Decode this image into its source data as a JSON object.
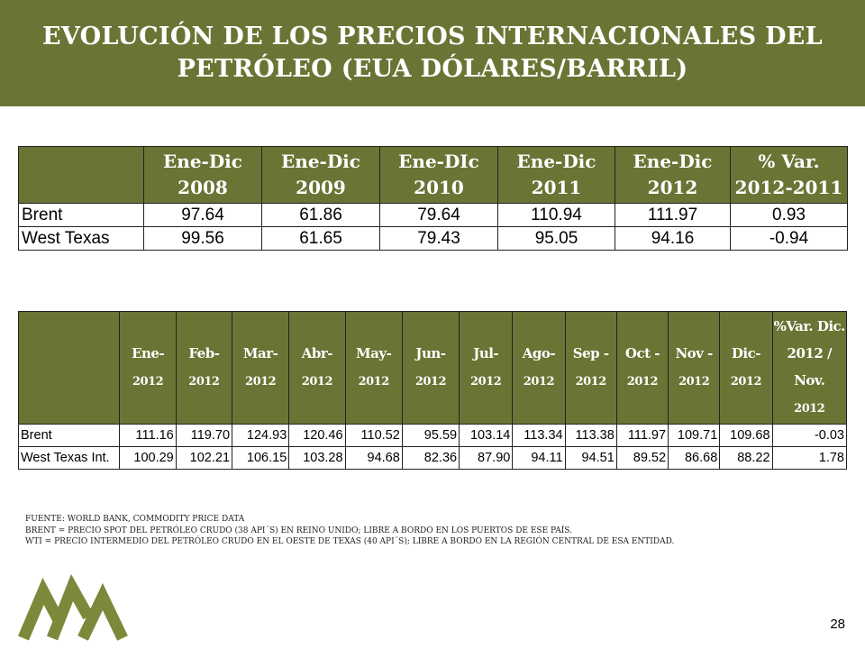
{
  "header": {
    "title": "EVOLUCIÓN DE LOS PRECIOS INTERNACIONALES DEL PETRÓLEO (EUA DÓLARES/BARRIL)"
  },
  "annual_table": {
    "headers": [
      "",
      "Ene-Dic 2008",
      "Ene-Dic 2009",
      "Ene-DIc 2010",
      "Ene-Dic 2011",
      "Ene-Dic 2012",
      "% Var. 2012-2011"
    ],
    "rows": [
      {
        "label": "Brent",
        "values": [
          "97.64",
          "61.86",
          "79.64",
          "110.94",
          "111.97",
          "0.93"
        ]
      },
      {
        "label": "West Texas",
        "values": [
          "99.56",
          "61.65",
          "79.43",
          "95.05",
          "94.16",
          "-0.94"
        ]
      }
    ]
  },
  "monthly_table": {
    "headers": [
      {
        "m": "",
        "y": ""
      },
      {
        "m": "Ene-",
        "y": "2012"
      },
      {
        "m": "Feb-",
        "y": "2012"
      },
      {
        "m": "Mar-",
        "y": "2012"
      },
      {
        "m": "Abr-",
        "y": "2012"
      },
      {
        "m": "May-",
        "y": "2012"
      },
      {
        "m": "Jun-",
        "y": "2012"
      },
      {
        "m": "Jul-",
        "y": "2012"
      },
      {
        "m": "Ago-",
        "y": "2012"
      },
      {
        "m": "Sep -",
        "y": "2012"
      },
      {
        "m": "Oct -",
        "y": "2012"
      },
      {
        "m": "Nov -",
        "y": "2012"
      },
      {
        "m": "Dic-",
        "y": "2012"
      },
      {
        "m": "%Var. Dic. 2012 / Nov.",
        "y": "2012"
      }
    ],
    "rows": [
      {
        "label": "Brent",
        "values": [
          "111.16",
          "119.70",
          "124.93",
          "120.46",
          "110.52",
          "95.59",
          "103.14",
          "113.34",
          "113.38",
          "111.97",
          "109.71",
          "109.68",
          "-0.03"
        ]
      },
      {
        "label": "West Texas Int.",
        "values": [
          "100.29",
          "102.21",
          "106.15",
          "103.28",
          "94.68",
          "82.36",
          "87.90",
          "94.11",
          "94.51",
          "89.52",
          "86.68",
          "88.22",
          "1.78"
        ]
      }
    ]
  },
  "notes": [
    "FUENTE: WORLD BANK, COMMODITY PRICE DATA",
    "BRENT = PRECIO SPOT DEL PETRÓLEO CRUDO (38 API´S) EN REINO UNIDO; LIBRE A BORDO EN LOS PUERTOS DE ESE PAÍS.",
    "WTI = PRECIO INTERMEDIO DEL PETRÓLEO CRUDO EN EL OESTE DE TEXAS (40 API´S); LIBRE A BORDO EN LA REGIÓN CENTRAL DE ESA ENTIDAD."
  ],
  "page_number": "28",
  "colors": {
    "header_bg": "#6b7434",
    "logo": "#7a8a3a"
  },
  "icons": {
    "logo": "mountains-logo-icon"
  }
}
